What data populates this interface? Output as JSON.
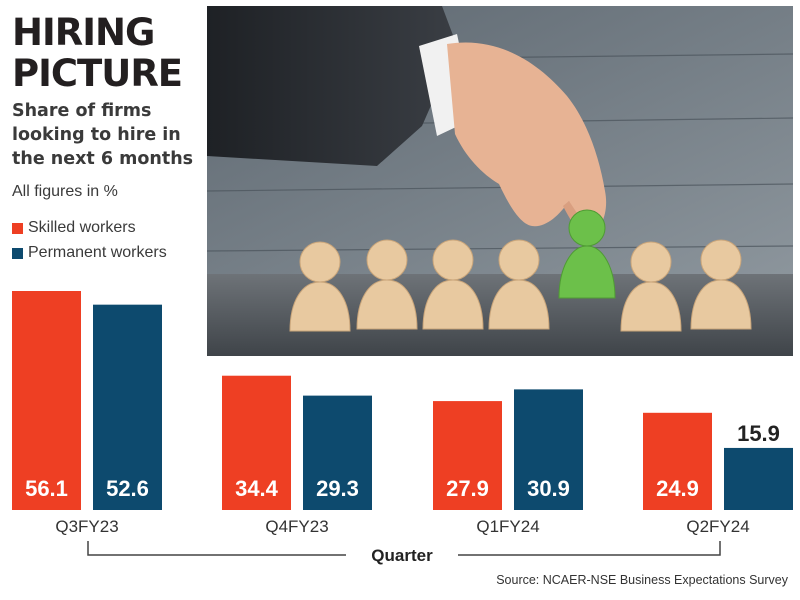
{
  "title_lines": [
    "HIRING",
    "PICTURE"
  ],
  "subtitle_lines": [
    "Share of firms",
    "looking to hire in",
    "the next 6 months"
  ],
  "units_note": "All figures in %",
  "source": "Source: NCAER-NSE Business Expectations Survey",
  "colors": {
    "skilled": "#ee3f23",
    "permanent": "#0d4a6e",
    "figure_green": "#6cc04a",
    "wood": "#e8c9a0"
  },
  "chart_data": {
    "type": "bar",
    "title": "HIRING PICTURE",
    "subtitle": "Share of firms looking to hire in the next 6 months",
    "xlabel": "Quarter",
    "ylabel": "",
    "unit": "%",
    "categories": [
      "Q3FY23",
      "Q4FY23",
      "Q1FY24",
      "Q2FY24"
    ],
    "series": [
      {
        "name": "Skilled workers",
        "values": [
          56.1,
          34.4,
          27.9,
          24.9
        ]
      },
      {
        "name": "Permanent workers",
        "values": [
          52.6,
          29.3,
          30.9,
          15.9
        ]
      }
    ],
    "ylim": [
      0,
      60
    ],
    "grid": false,
    "legend": "top-left"
  }
}
